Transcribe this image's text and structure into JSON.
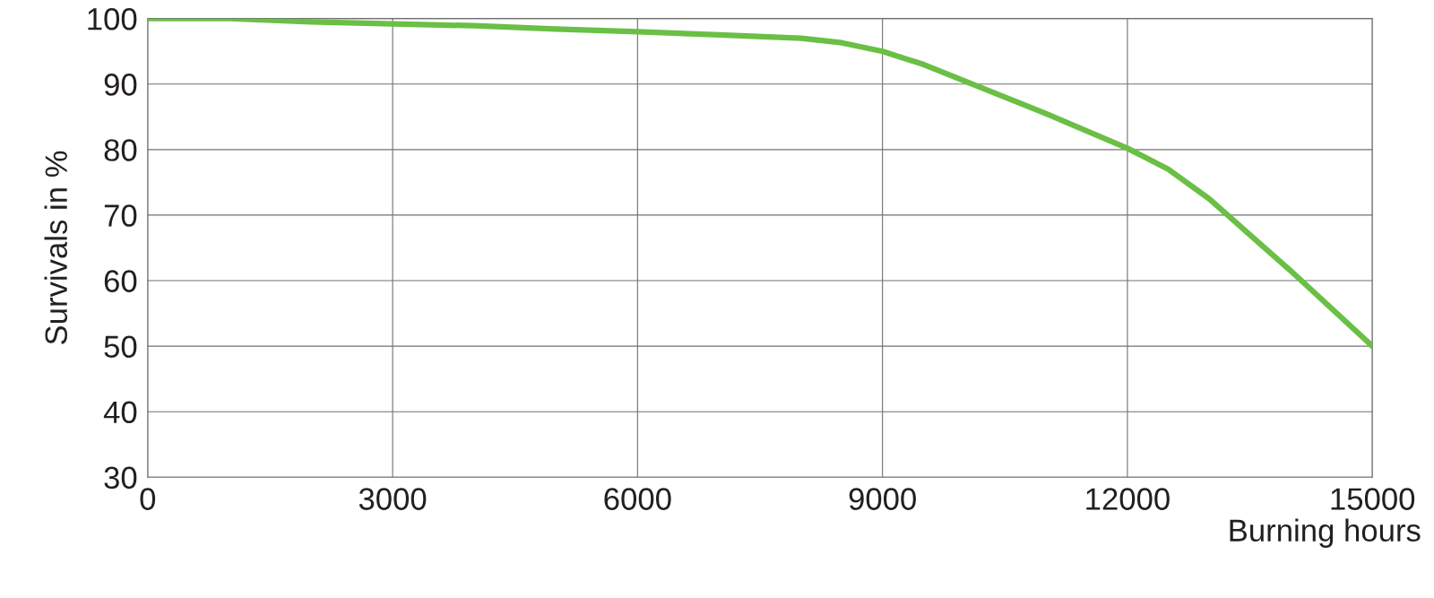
{
  "chart_data": {
    "type": "line",
    "xlabel": "Burning hours",
    "ylabel": "Survivals in %",
    "x": [
      0,
      1000,
      2000,
      3000,
      4000,
      5000,
      6000,
      7000,
      8000,
      8500,
      9000,
      9500,
      10000,
      11000,
      12000,
      12500,
      13000,
      14000,
      15000
    ],
    "series": [
      {
        "color": "#6abf45",
        "values": [
          100,
          100,
          99.5,
          99.2,
          98.9,
          98.4,
          98.0,
          97.5,
          97.0,
          96.3,
          95.0,
          93.0,
          90.5,
          85.5,
          80.2,
          77.0,
          72.5,
          61.5,
          50.0
        ]
      }
    ],
    "xlim": [
      0,
      15000
    ],
    "ylim": [
      30,
      100
    ],
    "xticks": [
      0,
      3000,
      6000,
      9000,
      12000,
      15000
    ],
    "yticks": [
      30,
      40,
      50,
      60,
      70,
      80,
      90,
      100
    ],
    "grid": true,
    "legend": false,
    "marker": "none",
    "line_style": "solid"
  }
}
